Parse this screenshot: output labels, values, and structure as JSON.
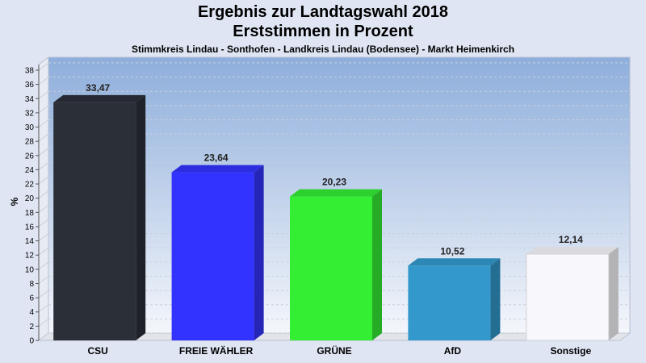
{
  "chart_data": {
    "type": "bar",
    "title": "Ergebnis zur Landtagswahl 2018",
    "title_line2": "Erststimmen in Prozent",
    "subtitle": "Stimmkreis Lindau - Sonthofen - Landkreis Lindau (Bodensee) - Markt Heimenkirch",
    "ylabel": "%",
    "xlabel": "",
    "ylim": [
      0,
      38
    ],
    "ytick_step": 2,
    "grid": true,
    "categories": [
      "CSU",
      "FREIE WÄHLER",
      "GRÜNE",
      "AfD",
      "Sonstige"
    ],
    "values": [
      33.47,
      23.64,
      20.23,
      10.52,
      12.14
    ],
    "value_labels": [
      "33,47",
      "23,64",
      "20,23",
      "10,52",
      "12,14"
    ],
    "colors": [
      "#2b2f38",
      "#3333ff",
      "#33ee33",
      "#3399cc",
      "#f8f8fc"
    ]
  }
}
